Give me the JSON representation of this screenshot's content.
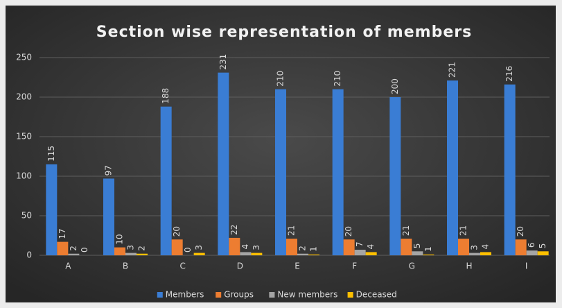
{
  "chart_data": {
    "type": "bar",
    "title": "Section wise representation of members",
    "categories": [
      "A",
      "B",
      "C",
      "D",
      "E",
      "F",
      "G",
      "H",
      "I"
    ],
    "series": [
      {
        "name": "Members",
        "color": "#3a7dd4",
        "values": [
          115,
          97,
          188,
          231,
          210,
          210,
          200,
          221,
          216
        ]
      },
      {
        "name": "Groups",
        "color": "#ed7d31",
        "values": [
          17,
          10,
          20,
          22,
          21,
          20,
          21,
          21,
          20
        ]
      },
      {
        "name": "New members",
        "color": "#a5a5a5",
        "values": [
          2,
          3,
          0,
          4,
          2,
          7,
          5,
          3,
          6
        ]
      },
      {
        "name": "Deceased",
        "color": "#ffc000",
        "values": [
          0,
          2,
          3,
          3,
          1,
          4,
          1,
          4,
          5
        ]
      }
    ],
    "ylim": [
      0,
      250
    ],
    "yticks": [
      0,
      50,
      100,
      150,
      200,
      250
    ],
    "grid": true,
    "legend": "bottom"
  }
}
